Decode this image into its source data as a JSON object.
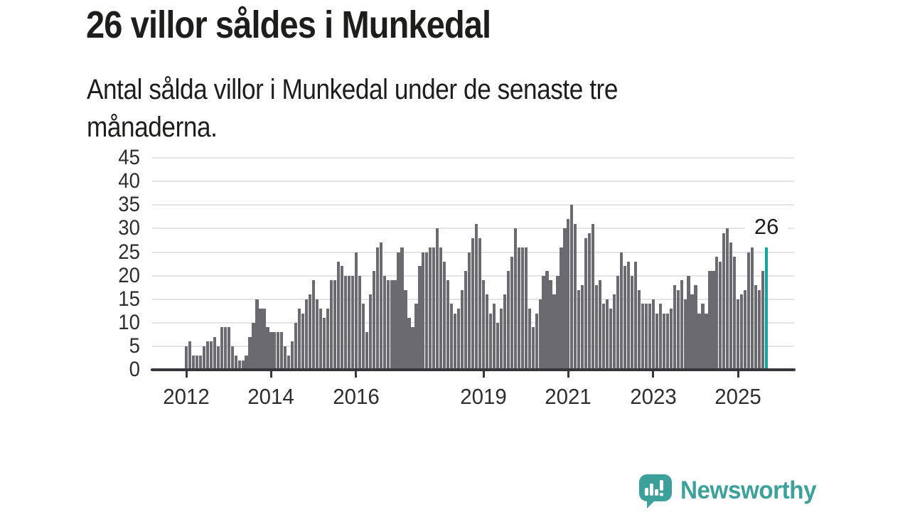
{
  "header": {
    "title": "26 villor såldes i Munkedal",
    "subtitle": "Antal sålda villor i Munkedal under de senaste tre månaderna."
  },
  "footer": {
    "brand": "Newsworthy"
  },
  "colors": {
    "bar": "#6b6a71",
    "highlight": "#12a49d",
    "grid": "#e4e4e4",
    "axis": "#35353b",
    "text": "#1d1d1b",
    "logo_teal": "#3da19b"
  },
  "chart_data": {
    "type": "bar",
    "title": "26 villor såldes i Munkedal",
    "subtitle": "Antal sålda villor i Munkedal under de senaste tre månaderna.",
    "xlabel": "",
    "ylabel": "",
    "x_unit": "month",
    "x_start": "2012-01",
    "x_end": "2025-09",
    "ylim": [
      0,
      45
    ],
    "grid": true,
    "yticks": [
      0,
      5,
      10,
      15,
      20,
      25,
      30,
      35,
      40,
      45
    ],
    "xticks": [
      {
        "label": "2012",
        "index": 0
      },
      {
        "label": "2014",
        "index": 24
      },
      {
        "label": "2016",
        "index": 48
      },
      {
        "label": "2019",
        "index": 84
      },
      {
        "label": "2021",
        "index": 108
      },
      {
        "label": "2023",
        "index": 132
      },
      {
        "label": "2025",
        "index": 156
      }
    ],
    "values": [
      5,
      6,
      3,
      3,
      3,
      5,
      6,
      6,
      7,
      5,
      9,
      9,
      9,
      5,
      3,
      2,
      2,
      3,
      7,
      10,
      15,
      13,
      13,
      9,
      8,
      8,
      8,
      8,
      5,
      3,
      6,
      10,
      13,
      12,
      15,
      16,
      19,
      15,
      13,
      11,
      13,
      19,
      19,
      23,
      22,
      20,
      20,
      20,
      25,
      20,
      14,
      8,
      16,
      21,
      26,
      27,
      20,
      19,
      19,
      19,
      25,
      26,
      17,
      11,
      9,
      14,
      22,
      25,
      25,
      26,
      26,
      30,
      26,
      23,
      19,
      14,
      12,
      13,
      17,
      21,
      25,
      28,
      31,
      28,
      19,
      16,
      12,
      14,
      10,
      13,
      16,
      21,
      24,
      30,
      26,
      26,
      26,
      13,
      9,
      12,
      15,
      20,
      21,
      19,
      16,
      20,
      26,
      30,
      32,
      35,
      31,
      17,
      18,
      28,
      29,
      31,
      18,
      19,
      14,
      15,
      13,
      16,
      20,
      25,
      22,
      23,
      20,
      23,
      17,
      14,
      14,
      14,
      15,
      12,
      14,
      12,
      12,
      13,
      18,
      17,
      19,
      15,
      20,
      16,
      18,
      12,
      14,
      12,
      21,
      21,
      24,
      23,
      29,
      30,
      27,
      24,
      15,
      16,
      17,
      25,
      26,
      18,
      17,
      21,
      26
    ],
    "highlight_index": 164,
    "highlight_value": 26,
    "annotation": {
      "text": "26"
    },
    "legend": null
  }
}
